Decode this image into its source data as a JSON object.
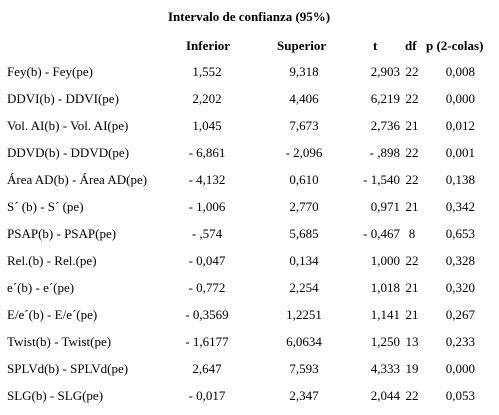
{
  "table": {
    "caption": "Intervalo de confianza (95%)",
    "headers": {
      "inferior": "Inferior",
      "superior": "Superior",
      "t": "t",
      "df": "df",
      "p": "p  (2-colas)"
    },
    "rows": [
      {
        "label": "Fey(b) - Fey(pe)",
        "inferior": "1,552",
        "superior": "9,318",
        "t": "2,903",
        "df": "22",
        "p": "0,008"
      },
      {
        "label": "DDVI(b) - DDVI(pe)",
        "inferior": "2,202",
        "superior": "4,406",
        "t": "6,219",
        "df": "22",
        "p": "0,000"
      },
      {
        "label": "Vol. AI(b) - Vol. AI(pe)",
        "inferior": "1,045",
        "superior": "7,673",
        "t": "2,736",
        "df": "21",
        "p": "0,012"
      },
      {
        "label": "DDVD(b) - DDVD(pe)",
        "inferior": "- 6,861",
        "superior": "- 2,096",
        "t": "- ,898",
        "df": "22",
        "p": "0,001"
      },
      {
        "label": "Área AD(b) - Área AD(pe)",
        "inferior": "- 4,132",
        "superior": "0,610",
        "t": "- 1,540",
        "df": "22",
        "p": "0,138"
      },
      {
        "label": "S´ (b) - S´ (pe)",
        "inferior": "- 1,006",
        "superior": "2,770",
        "t": "0,971",
        "df": "21",
        "p": "0,342"
      },
      {
        "label": "PSAP(b) - PSAP(pe)",
        "inferior": "- ,574",
        "superior": "5,685",
        "t": "- 0,467",
        "df": "8",
        "p": "0,653"
      },
      {
        "label": "Rel.(b) - Rel.(pe)",
        "inferior": "- 0,047",
        "superior": "0,134",
        "t": "1,000",
        "df": "22",
        "p": "0,328"
      },
      {
        "label": "e´(b) - e´(pe)",
        "inferior": "- 0,772",
        "superior": "2,254",
        "t": "1,018",
        "df": "21",
        "p": "0,320"
      },
      {
        "label": "E/e´(b) - E/e´(pe)",
        "inferior": "- 0,3569",
        "superior": "1,2251",
        "t": "1,141",
        "df": "21",
        "p": "0,267"
      },
      {
        "label": "Twist(b) - Twist(pe)",
        "inferior": "- 1,6177",
        "superior": "6,0634",
        "t": "1,250",
        "df": "13",
        "p": "0,233"
      },
      {
        "label": "SPLVd(b) - SPLVd(pe)",
        "inferior": "2,647",
        "superior": "7,593",
        "t": "4,333",
        "df": "19",
        "p": "0,000"
      },
      {
        "label": "SLG(b) - SLG(pe)",
        "inferior": "- 0,017",
        "superior": "2,347",
        "t": "2,044",
        "df": "22",
        "p": "0,053"
      }
    ]
  }
}
